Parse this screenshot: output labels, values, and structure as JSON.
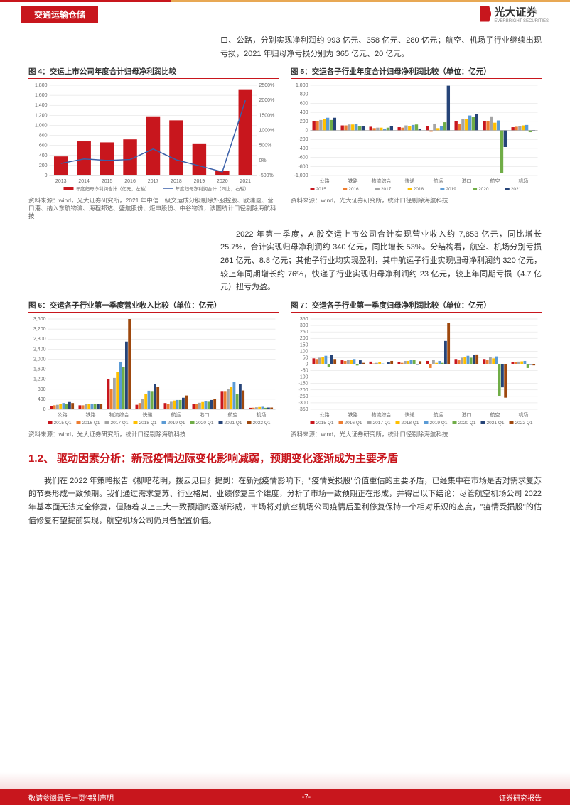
{
  "header": {
    "category": "交通运输仓储",
    "brand": "光大证券",
    "brand_sub": "EVERBRIGHT SECURITIES"
  },
  "intro1": "口、公路，分别实现净利润约 993 亿元、358 亿元、280 亿元；航空、机场子行业继续出现亏损，2021 年归母净亏损分别为 365 亿元、20 亿元。",
  "fig4": {
    "title": "图 4：交运上市公司年度合计归母净利润比较",
    "source": "资料来源：wind，光大证券研究所，2021 年中信一级交运成分股剔除外服控股、欧浦退、营口港、纳入东航物流、海程邦达、盛航股份、炬申股份、中谷物流，该图统计口径剔除海航科技",
    "years": [
      "2013",
      "2014",
      "2015",
      "2016",
      "2017",
      "2018",
      "2019",
      "2020",
      "2021"
    ],
    "bars": [
      380,
      680,
      660,
      720,
      1180,
      1100,
      640,
      90,
      1720
    ],
    "line": [
      -100,
      50,
      0,
      30,
      380,
      20,
      -180,
      -380,
      2000
    ],
    "bar_color": "#c8161d",
    "line_color": "#3a5fa8",
    "ylim_left": [
      0,
      1800
    ],
    "ytick_left": 200,
    "ylim_right": [
      -500,
      2500
    ],
    "ytick_right": 500,
    "legend": [
      "年度归母净利润合计（亿元，左轴）",
      "年度归母净利润合计（同比，右轴）"
    ]
  },
  "fig5": {
    "title": "图 5：交运各子行业年度合计归母净利润比较（单位：亿元）",
    "source": "资料来源：wind，光大证券研究所，统计口径剔除海航科技",
    "categories": [
      "公路",
      "铁路",
      "物流综合",
      "快递",
      "航运",
      "港口",
      "航空",
      "机场"
    ],
    "series_years": [
      "2015",
      "2016",
      "2017",
      "2018",
      "2019",
      "2020",
      "2021"
    ],
    "colors": [
      "#c8161d",
      "#ed7d31",
      "#a5a5a5",
      "#ffc000",
      "#5b9bd5",
      "#70ad47",
      "#264478"
    ],
    "data": [
      [
        200,
        210,
        230,
        250,
        280,
        230,
        280
      ],
      [
        110,
        110,
        130,
        130,
        140,
        100,
        100
      ],
      [
        80,
        50,
        60,
        60,
        40,
        60,
        95
      ],
      [
        70,
        60,
        110,
        100,
        120,
        130,
        30
      ],
      [
        100,
        -30,
        150,
        50,
        90,
        180,
        990
      ],
      [
        200,
        150,
        260,
        250,
        330,
        300,
        360
      ],
      [
        200,
        210,
        310,
        170,
        220,
        -950,
        -370
      ],
      [
        70,
        80,
        100,
        110,
        120,
        -40,
        -20
      ]
    ],
    "ylim": [
      -1000,
      1000
    ],
    "ytick": 200
  },
  "intro2": "2022 年第一季度，A 股交运上市公司合计实现营业收入约 7,853 亿元，同比增长 25.7%，合计实现归母净利润约 340 亿元，同比增长 53%。分结构看，航空、机场分别亏损 261 亿元、8.8 亿元；其他子行业均实现盈利，其中航运子行业实现归母净利润约 320 亿元，较上年同期增长约 76%，快递子行业实现归母净利润约 23 亿元，较上年同期亏损（4.7 亿元）扭亏为盈。",
  "fig6": {
    "title": "图 6：交运各子行业第一季度营业收入比较（单位：亿元）",
    "source": "资料来源：wind，光大证券研究所，统计口径剔除海航科技",
    "categories": [
      "公路",
      "铁路",
      "物流综合",
      "快递",
      "航运",
      "港口",
      "航空",
      "机场"
    ],
    "series_years": [
      "2015 Q1",
      "2016 Q1",
      "2017 Q1",
      "2018 Q1",
      "2019 Q1",
      "2020 Q1",
      "2021 Q1",
      "2022 Q1"
    ],
    "colors": [
      "#c8161d",
      "#ed7d31",
      "#a5a5a5",
      "#ffc000",
      "#5b9bd5",
      "#70ad47",
      "#264478",
      "#9e480e"
    ],
    "data": [
      [
        140,
        160,
        180,
        210,
        250,
        200,
        290,
        250
      ],
      [
        160,
        160,
        200,
        220,
        220,
        200,
        220,
        220
      ],
      [
        1200,
        800,
        1250,
        1500,
        1900,
        1700,
        2700,
        3600
      ],
      [
        180,
        250,
        400,
        600,
        740,
        700,
        1000,
        900
      ],
      [
        250,
        200,
        300,
        350,
        370,
        370,
        460,
        550
      ],
      [
        200,
        200,
        260,
        290,
        320,
        300,
        370,
        400
      ],
      [
        700,
        700,
        800,
        900,
        1100,
        600,
        1000,
        750
      ],
      [
        60,
        65,
        80,
        90,
        100,
        60,
        70,
        70
      ]
    ],
    "ylim": [
      0,
      3600
    ],
    "ytick": 400
  },
  "fig7": {
    "title": "图 7：交运各子行业第一季度归母净利润比较（单位：亿元）",
    "source": "资料来源：wind，光大证券研究所，统计口径剔除海航科技",
    "categories": [
      "公路",
      "铁路",
      "物流综合",
      "快递",
      "航运",
      "港口",
      "航空",
      "机场"
    ],
    "series_years": [
      "2015 Q1",
      "2016 Q1",
      "2017 Q1",
      "2018 Q1",
      "2019 Q1",
      "2020 Q1",
      "2021 Q1",
      "2022 Q1"
    ],
    "colors": [
      "#c8161d",
      "#ed7d31",
      "#a5a5a5",
      "#ffc000",
      "#5b9bd5",
      "#70ad47",
      "#264478",
      "#9e480e"
    ],
    "data": [
      [
        45,
        40,
        50,
        55,
        65,
        -25,
        70,
        40
      ],
      [
        30,
        25,
        35,
        35,
        40,
        -10,
        30,
        10
      ],
      [
        20,
        5,
        10,
        15,
        5,
        0,
        15,
        25
      ],
      [
        15,
        10,
        25,
        25,
        35,
        32,
        -5,
        23
      ],
      [
        25,
        -30,
        35,
        10,
        25,
        10,
        180,
        320
      ],
      [
        40,
        30,
        50,
        55,
        65,
        50,
        70,
        75
      ],
      [
        40,
        35,
        55,
        45,
        60,
        -250,
        -180,
        -260
      ],
      [
        15,
        15,
        20,
        22,
        25,
        -30,
        -5,
        -9
      ]
    ],
    "ylim": [
      -350,
      350
    ],
    "ytick": 50
  },
  "section": {
    "num": "1.2、",
    "title": "驱动因素分析：新冠疫情边际变化影响减弱，预期变化逐渐成为主要矛盾"
  },
  "body2": "我们在 2022 年策略报告《柳暗花明，拨云见日》提到：在新冠疫情影响下，\"疫情受损股\"价值重估的主要矛盾，已经集中在市场是否对需求复苏的节奏形成一致预期。我们通过需求复苏、行业格局、业绩修复三个维度，分析了市场一致预期正在形成，并得出以下结论：尽管航空机场公司 2022 年基本面无法完全修复，但随着以上三大一致预期的逐渐形成，市场将对航空机场公司疫情后盈利修复保持一个相对乐观的态度，\"疫情受损股\"的估值修复有望提前实现，航空机场公司仍具备配置价值。",
  "footer": {
    "left": "敬请参阅最后一页特别声明",
    "center": "-7-",
    "right": "证券研究报告"
  }
}
